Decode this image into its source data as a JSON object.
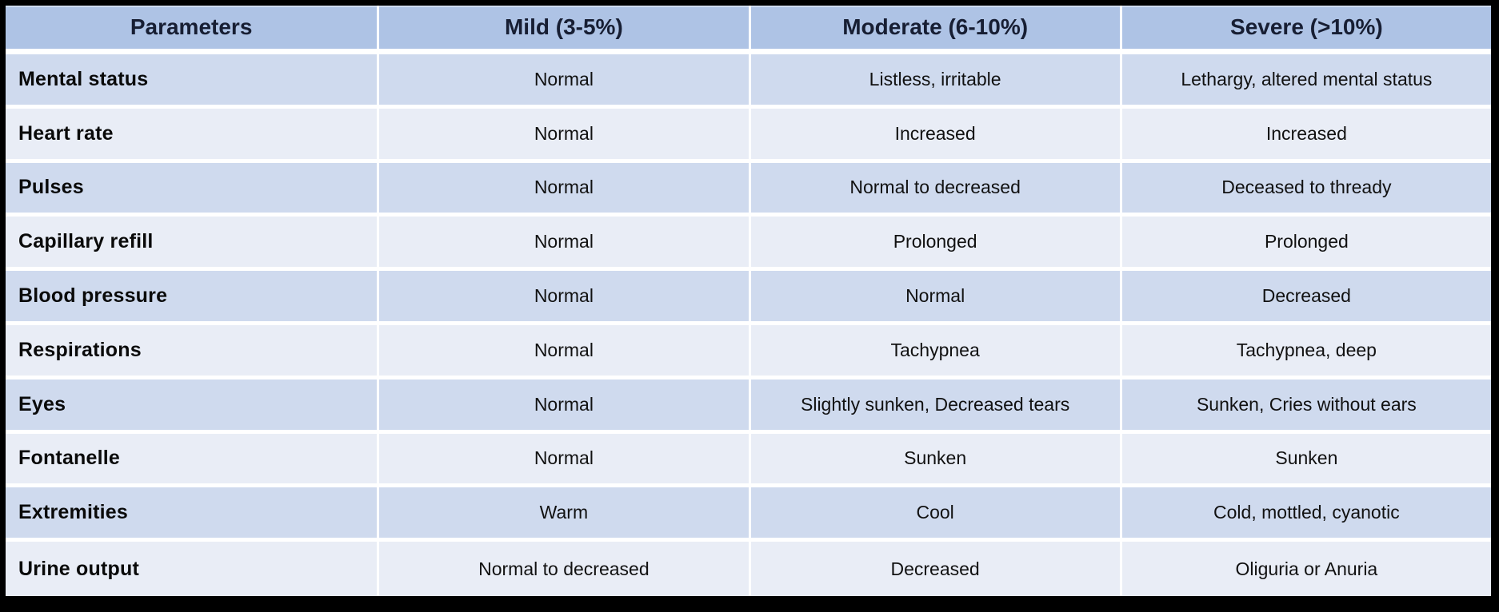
{
  "table": {
    "columns": [
      "Parameters",
      "Mild (3-5%)",
      "Moderate (6-10%)",
      "Severe (>10%)"
    ],
    "rows": [
      {
        "parameter": "Mental status",
        "mild": "Normal",
        "moderate": "Listless, irritable",
        "severe": "Lethargy, altered mental status"
      },
      {
        "parameter": "Heart rate",
        "mild": "Normal",
        "moderate": "Increased",
        "severe": "Increased"
      },
      {
        "parameter": "Pulses",
        "mild": "Normal",
        "moderate": "Normal to decreased",
        "severe": "Deceased to thready"
      },
      {
        "parameter": "Capillary refill",
        "mild": "Normal",
        "moderate": "Prolonged",
        "severe": "Prolonged"
      },
      {
        "parameter": "Blood pressure",
        "mild": "Normal",
        "moderate": "Normal",
        "severe": "Decreased"
      },
      {
        "parameter": "Respirations",
        "mild": "Normal",
        "moderate": "Tachypnea",
        "severe": "Tachypnea, deep"
      },
      {
        "parameter": "Eyes",
        "mild": "Normal",
        "moderate": "Slightly sunken, Decreased tears",
        "severe": "Sunken, Cries without ears"
      },
      {
        "parameter": "Fontanelle",
        "mild": "Normal",
        "moderate": "Sunken",
        "severe": "Sunken"
      },
      {
        "parameter": "Extremities",
        "mild": "Warm",
        "moderate": "Cool",
        "severe": "Cold, mottled, cyanotic"
      },
      {
        "parameter": "Urine output",
        "mild": "Normal to decreased",
        "moderate": "Decreased",
        "severe": "Oliguria or Anuria"
      }
    ]
  },
  "colors": {
    "canvas_bg": "#000000",
    "header_bg": "#aec3e5",
    "header_text": "#171e33",
    "row_dark_bg": "#cfdaee",
    "row_light_bg": "#e9edf6",
    "divider": "#ffffff",
    "body_text": "#111111"
  }
}
